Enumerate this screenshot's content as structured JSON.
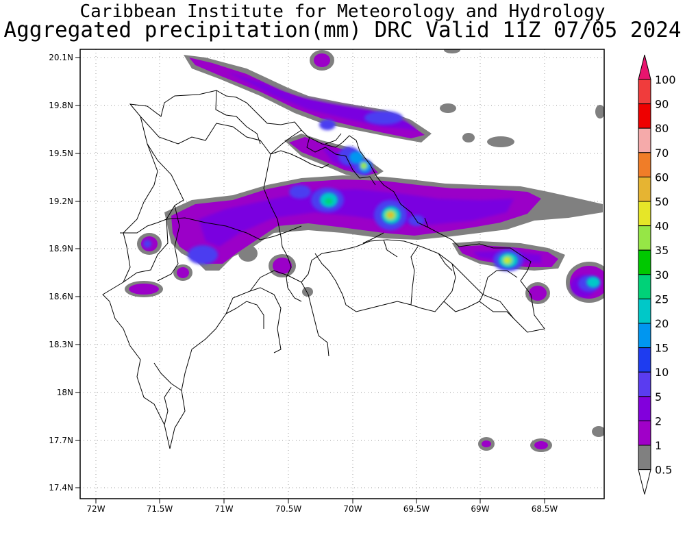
{
  "title_line1": "Caribbean Institute for Meteorology and Hydrology",
  "title_line2": "Aggregated precipitation(mm) DRC Valid 11Z 07/05 2024",
  "lat_labels": [
    "20.1N",
    "19.8N",
    "19.5N",
    "19.2N",
    "18.9N",
    "18.6N",
    "18.3N",
    "18N",
    "17.7N",
    "17.4N"
  ],
  "lon_labels": [
    "72W",
    "71.5W",
    "71W",
    "70.5W",
    "70W",
    "69.5W",
    "69W",
    "68.5W"
  ],
  "legend": {
    "bins": [
      {
        "label": "100",
        "color": "#e8146e"
      },
      {
        "label": "90",
        "color": "#f03c3c"
      },
      {
        "label": "80",
        "color": "#ee0000"
      },
      {
        "label": "70",
        "color": "#f5aaaa"
      },
      {
        "label": "60",
        "color": "#f07d28"
      },
      {
        "label": "50",
        "color": "#e6b432"
      },
      {
        "label": "40",
        "color": "#e6e628"
      },
      {
        "label": "35",
        "color": "#96e646"
      },
      {
        "label": "30",
        "color": "#00c800"
      },
      {
        "label": "25",
        "color": "#00d278"
      },
      {
        "label": "20",
        "color": "#00c8c8"
      },
      {
        "label": "15",
        "color": "#0096f0"
      },
      {
        "label": "10",
        "color": "#1e3cf0"
      },
      {
        "label": "5",
        "color": "#5a3cf0"
      },
      {
        "label": "2",
        "color": "#8200dc"
      },
      {
        "label": "1",
        "color": "#a000c8"
      },
      {
        "label": "0.5",
        "color": "#808080"
      }
    ],
    "below_color": "#ffffff"
  }
}
